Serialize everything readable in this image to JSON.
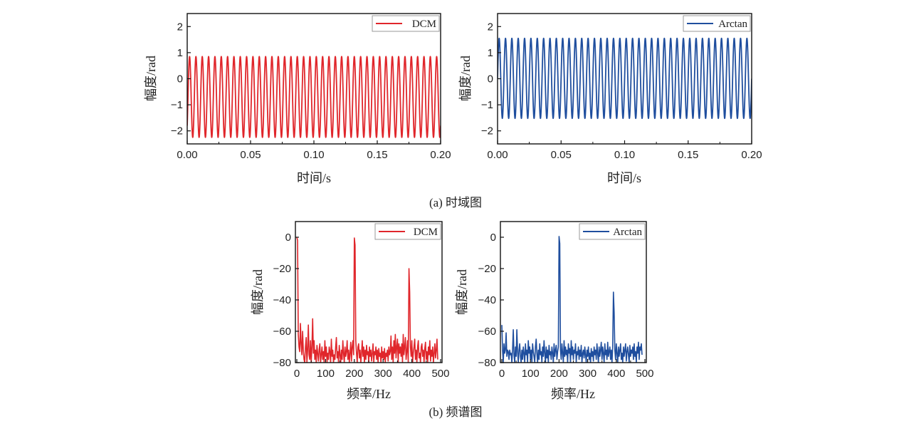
{
  "figure": {
    "caption_a": "(a) 时域图",
    "caption_b": "(b) 频谱图"
  },
  "chart_data": [
    {
      "id": "time-dcm",
      "type": "line",
      "title": "",
      "xlabel": "时间/s",
      "ylabel": "幅度/rad",
      "xlim": [
        0,
        0.2
      ],
      "ylim": [
        -2.5,
        2.5
      ],
      "xticks": [
        "0.00",
        "0.05",
        "0.10",
        "0.15",
        "0.20"
      ],
      "xtick_values": [
        0,
        0.05,
        0.1,
        0.15,
        0.2
      ],
      "yticks": [
        "2",
        "1",
        "0",
        "−1",
        "−2"
      ],
      "ytick_values": [
        2,
        1,
        0,
        -1,
        -2
      ],
      "legend": {
        "label": "DCM",
        "position": "top-right"
      },
      "color": "#e0262b",
      "grid": false,
      "series": [
        {
          "name": "DCM",
          "signal": "sinusoid",
          "frequency_hz": 200,
          "max": 0.85,
          "min": -2.25,
          "start_value": -1.8
        }
      ]
    },
    {
      "id": "time-arctan",
      "type": "line",
      "title": "",
      "xlabel": "时间/s",
      "ylabel": "幅度/rad",
      "xlim": [
        0,
        0.2
      ],
      "ylim": [
        -2.5,
        2.5
      ],
      "xticks": [
        "0.00",
        "0.05",
        "0.10",
        "0.15",
        "0.20"
      ],
      "xtick_values": [
        0,
        0.05,
        0.1,
        0.15,
        0.2
      ],
      "yticks": [
        "2",
        "1",
        "0",
        "−1",
        "−2"
      ],
      "ytick_values": [
        2,
        1,
        0,
        -1,
        -2
      ],
      "legend": {
        "label": "Arctan",
        "position": "top-right"
      },
      "color": "#1f4e9e",
      "grid": false,
      "series": [
        {
          "name": "Arctan",
          "signal": "sinusoid",
          "frequency_hz": 200,
          "max": 1.55,
          "min": -1.52,
          "start_value": 0
        }
      ]
    },
    {
      "id": "spectrum-dcm",
      "type": "line",
      "title": "",
      "xlabel": "频率/Hz",
      "ylabel": "幅度/rad",
      "xlim": [
        -5,
        505
      ],
      "ylim": [
        -80,
        10
      ],
      "xticks": [
        "0",
        "100",
        "200",
        "300",
        "400",
        "500"
      ],
      "xtick_values": [
        0,
        100,
        200,
        300,
        400,
        500
      ],
      "yticks": [
        "0",
        "−20",
        "−40",
        "−60",
        "−80"
      ],
      "ytick_values": [
        0,
        -20,
        -40,
        -60,
        -80
      ],
      "legend": {
        "label": "DCM",
        "position": "top-right"
      },
      "color": "#e0262b",
      "grid": false,
      "series": [
        {
          "name": "DCM",
          "x_step_hz": 2.5,
          "values": [
            0,
            -2,
            -62,
            -70,
            -73,
            -55,
            -68,
            -75,
            -60,
            -72,
            -78,
            -80,
            -70,
            -64,
            -80,
            -72,
            -56,
            -75,
            -78,
            -66,
            -80,
            -70,
            -52,
            -74,
            -66,
            -78,
            -72,
            -80,
            -69,
            -74,
            -79,
            -72,
            -68,
            -80,
            -75,
            -70,
            -78,
            -73,
            -80,
            -66,
            -76,
            -70,
            -80,
            -74,
            -78,
            -70,
            -73,
            -80,
            -65,
            -76,
            -72,
            -80,
            -75,
            -78,
            -70,
            -64,
            -77,
            -73,
            -80,
            -69,
            -75,
            -80,
            -72,
            -78,
            -66,
            -74,
            -80,
            -70,
            -76,
            -73,
            -66,
            -78,
            -72,
            -80,
            -74,
            -67,
            -79,
            -70,
            -66,
            -75,
            -0.5,
            -5,
            -66,
            -74,
            -80,
            -70,
            -68,
            -77,
            -72,
            -80,
            -74,
            -66,
            -76,
            -70,
            -80,
            -72,
            -78,
            -69,
            -75,
            -73,
            -80,
            -70,
            -76,
            -72,
            -79,
            -74,
            -68,
            -80,
            -73,
            -75,
            -70,
            -78,
            -72,
            -80,
            -71,
            -76,
            -74,
            -80,
            -70,
            -77,
            -73,
            -78,
            -71,
            -80,
            -74,
            -76,
            -72,
            -79,
            -70,
            -75,
            -73,
            -63,
            -78,
            -70,
            -80,
            -66,
            -74,
            -62,
            -77,
            -70,
            -65,
            -80,
            -68,
            -74,
            -70,
            -76,
            -68,
            -80,
            -62,
            -75,
            -70,
            -64,
            -78,
            -73,
            -66,
            -80,
            -20,
            -35,
            -70,
            -76,
            -66,
            -80,
            -74,
            -70,
            -65,
            -78,
            -72,
            -80,
            -70,
            -66,
            -77,
            -74,
            -80,
            -70,
            -68,
            -76,
            -72,
            -80,
            -71,
            -67,
            -78,
            -73,
            -80,
            -70,
            -75,
            -66,
            -79,
            -72,
            -76,
            -70,
            -80,
            -74,
            -68,
            -77,
            -72,
            -65,
            -78
          ]
        }
      ]
    },
    {
      "id": "spectrum-arctan",
      "type": "line",
      "title": "",
      "xlabel": "频率/Hz",
      "ylabel": "幅度/rad",
      "xlim": [
        -5,
        505
      ],
      "ylim": [
        -80,
        10
      ],
      "xticks": [
        "0",
        "100",
        "200",
        "300",
        "400",
        "500"
      ],
      "xtick_values": [
        0,
        100,
        200,
        300,
        400,
        500
      ],
      "yticks": [
        "0",
        "−20",
        "−40",
        "−60",
        "−80"
      ],
      "ytick_values": [
        0,
        -20,
        -40,
        -60,
        -80
      ],
      "legend": {
        "label": "Arctan",
        "position": "top-right"
      },
      "color": "#1f4e9e",
      "grid": false,
      "series": [
        {
          "name": "Arctan",
          "x_step_hz": 2.5,
          "values": [
            -56,
            -72,
            -80,
            -68,
            -74,
            -72,
            -61,
            -76,
            -72,
            -73,
            -78,
            -72,
            -75,
            -74,
            -80,
            -72,
            -59,
            -75,
            -80,
            -70,
            -76,
            -59,
            -73,
            -80,
            -72,
            -68,
            -76,
            -80,
            -72,
            -78,
            -70,
            -74,
            -80,
            -68,
            -75,
            -72,
            -80,
            -66,
            -74,
            -70,
            -78,
            -72,
            -80,
            -68,
            -73,
            -76,
            -80,
            -70,
            -65,
            -74,
            -80,
            -72,
            -78,
            -68,
            -75,
            -73,
            -80,
            -70,
            -76,
            -66,
            -74,
            -80,
            -70,
            -77,
            -72,
            -80,
            -69,
            -75,
            -73,
            -78,
            -70,
            -74,
            -80,
            -68,
            -76,
            -72,
            -69,
            -78,
            -73,
            -70,
            0.5,
            -4,
            -72,
            -78,
            -68,
            -74,
            -80,
            -66,
            -76,
            -70,
            -75,
            -72,
            -80,
            -68,
            -74,
            -71,
            -80,
            -66,
            -75,
            -70,
            -78,
            -72,
            -74,
            -68,
            -80,
            -73,
            -75,
            -70,
            -78,
            -72,
            -76,
            -69,
            -80,
            -74,
            -72,
            -77,
            -70,
            -75,
            -80,
            -72,
            -76,
            -70,
            -78,
            -74,
            -80,
            -71,
            -76,
            -73,
            -79,
            -70,
            -75,
            -72,
            -78,
            -68,
            -74,
            -80,
            -70,
            -76,
            -72,
            -67,
            -78,
            -70,
            -74,
            -80,
            -68,
            -75,
            -72,
            -78,
            -67,
            -76,
            -73,
            -70,
            -78,
            -72,
            -80,
            -70,
            -35,
            -48,
            -72,
            -78,
            -68,
            -74,
            -80,
            -70,
            -76,
            -72,
            -68,
            -78,
            -74,
            -80,
            -70,
            -76,
            -72,
            -68,
            -79,
            -73,
            -70,
            -75,
            -80,
            -69,
            -76,
            -72,
            -74,
            -70,
            -78,
            -68,
            -76,
            -73,
            -80,
            -70,
            -74,
            -67,
            -78,
            -70,
            -72,
            -68,
            -75
          ]
        }
      ]
    }
  ]
}
